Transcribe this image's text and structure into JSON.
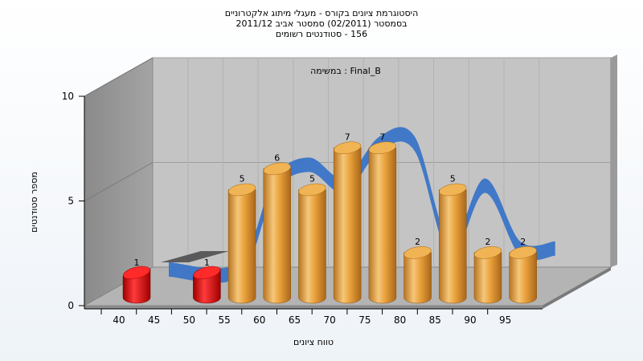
{
  "chart_data": {
    "type": "bar",
    "title_lines": [
      "היסטוגרמת ציונים בקורס - מעגלי מיתוג אלקטרוניים",
      "בסמסטר  (02/2011)  סמסטר אביב 2011/12",
      "156 - סטודנטים רשומים"
    ],
    "annotation": "במשימה : Final_B",
    "xlabel": "טווח ציונים",
    "ylabel": "מספר סטודנטים",
    "x_ticks": [
      "40",
      "45",
      "50",
      "55",
      "60",
      "65",
      "70",
      "75",
      "80",
      "85",
      "90",
      "95"
    ],
    "y_ticks": [
      "0",
      "5",
      "10"
    ],
    "ylim": [
      0,
      10
    ],
    "categories": [
      "40",
      "50",
      "55",
      "60",
      "65",
      "70",
      "75",
      "80",
      "85",
      "90",
      "95"
    ],
    "values": [
      1,
      1,
      5,
      6,
      5,
      7,
      7,
      2,
      5,
      2,
      2
    ],
    "bar_colors": [
      "#dd1111",
      "#dd1111",
      "#e8a33c",
      "#e8a33c",
      "#e8a33c",
      "#e8a33c",
      "#e8a33c",
      "#e8a33c",
      "#e8a33c",
      "#e8a33c",
      "#e8a33c"
    ],
    "curve_color": "#3a74c8",
    "grid": true
  }
}
